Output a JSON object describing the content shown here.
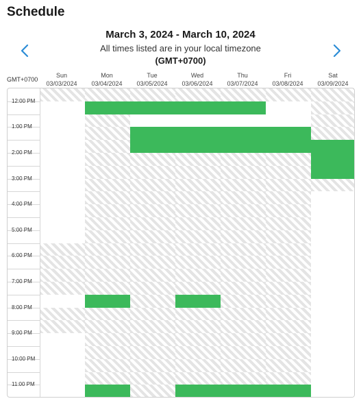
{
  "title": "Schedule",
  "header": {
    "date_range": "March 3, 2024 - March 10, 2024",
    "timezone_note": "All times listed are in your local timezone",
    "timezone": "(GMT+0700)"
  },
  "grid": {
    "gmt_label": "GMT+0700",
    "days": [
      {
        "name": "Sun",
        "date": "03/03/2024"
      },
      {
        "name": "Mon",
        "date": "03/04/2024"
      },
      {
        "name": "Tue",
        "date": "03/05/2024"
      },
      {
        "name": "Wed",
        "date": "03/06/2024"
      },
      {
        "name": "Thu",
        "date": "03/07/2024"
      },
      {
        "name": "Fri",
        "date": "03/08/2024"
      },
      {
        "name": "Sat",
        "date": "03/09/2024"
      }
    ],
    "time_labels": [
      "12:00 PM",
      "1:00 PM",
      "2:00 PM",
      "3:00 PM",
      "4:00 PM",
      "5:00 PM",
      "6:00 PM",
      "7:00 PM",
      "8:00 PM",
      "9:00 PM",
      "10:00 PM",
      "11:00 PM"
    ],
    "slot_rows": [
      "uuuuuuu",
      "abbbbau",
      "auaaaau",
      "aubbbbu",
      "aubbbbb",
      "auuuuub",
      "auuuuub",
      "auuuuuu",
      "auuuuua",
      "auuuuua",
      "auuuuua",
      "auuuuua",
      "uuuuuua",
      "uuuuuua",
      "uuuuuua",
      "uuuuuua",
      "abubuua",
      "uuuuuua",
      "uuuuuua",
      "auuuuua",
      "auuuuua",
      "auuuuua",
      "auuuuua",
      "abubbba",
      "aububba"
    ]
  },
  "legend": {
    "states": {
      "u": "unavailable",
      "a": "available",
      "b": "booked"
    },
    "booked_color": "#3cb95b",
    "unavailable_color": "#e4e4e4"
  }
}
